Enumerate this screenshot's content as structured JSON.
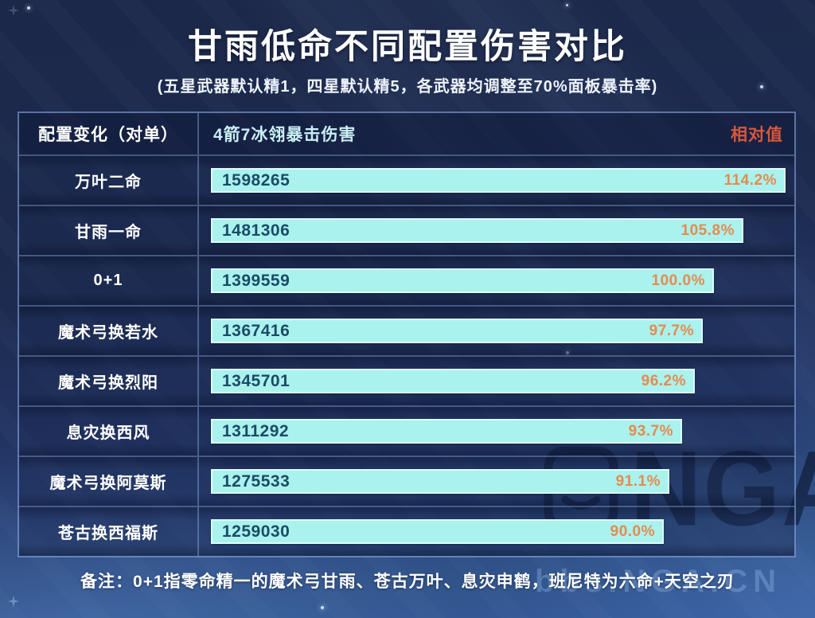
{
  "title": "甘雨低命不同配置伤害对比",
  "subtitle": "(五星武器默认精1，四星默认精5，各武器均调整至70%面板暴击率)",
  "table": {
    "header": {
      "config": "配置变化（对单）",
      "damage": "4箭7冰翎暴击伤害",
      "relative": "相对值"
    },
    "rows": [
      {
        "label": "万叶二命",
        "value": "1598265",
        "pct": "114.2%",
        "pct_num": 114.2
      },
      {
        "label": "甘雨一命",
        "value": "1481306",
        "pct": "105.8%",
        "pct_num": 105.8
      },
      {
        "label": "0+1",
        "value": "1399559",
        "pct": "100.0%",
        "pct_num": 100.0
      },
      {
        "label": "魔术弓换若水",
        "value": "1367416",
        "pct": "97.7%",
        "pct_num": 97.7
      },
      {
        "label": "魔术弓换烈阳",
        "value": "1345701",
        "pct": "96.2%",
        "pct_num": 96.2
      },
      {
        "label": "息灾换西风",
        "value": "1311292",
        "pct": "93.7%",
        "pct_num": 93.7
      },
      {
        "label": "魔术弓换阿莫斯",
        "value": "1275533",
        "pct": "91.1%",
        "pct_num": 91.1
      },
      {
        "label": "苍古换西福斯",
        "value": "1259030",
        "pct": "90.0%",
        "pct_num": 90.0
      }
    ]
  },
  "note": "备注：0+1指零命精一的魔术弓甘雨、苍古万叶、息灾申鹤，班尼特为六命+天空之刃",
  "watermark": {
    "logo_text": "NGA",
    "site_text": "bbs.NGA.CN"
  },
  "colors": {
    "bar_fill": "#aaf2ee",
    "bar_border": "#ddfdfb",
    "bar_value_text": "#1b4b66",
    "percent_text": "#e68a4f",
    "relative_header_text": "#d9573a",
    "damage_header_text": "#c9eef5",
    "background_top": "#1c2849",
    "background_bottom": "#35599a",
    "table_border": "#91b4f0"
  },
  "chart_data": {
    "type": "bar",
    "orientation": "horizontal",
    "title": "甘雨低命不同配置伤害对比",
    "subtitle": "(五星武器默认精1，四星默认精5，各武器均调整至70%面板暴击率)",
    "categories": [
      "万叶二命",
      "甘雨一命",
      "0+1",
      "魔术弓换若水",
      "魔术弓换烈阳",
      "息灾换西风",
      "魔术弓换阿莫斯",
      "苍古换西福斯"
    ],
    "series": [
      {
        "name": "4箭7冰翎暴击伤害",
        "values": [
          1598265,
          1481306,
          1399559,
          1367416,
          1345701,
          1311292,
          1275533,
          1259030
        ]
      },
      {
        "name": "相对值(%)",
        "values": [
          114.2,
          105.8,
          100.0,
          97.7,
          96.2,
          93.7,
          91.1,
          90.0
        ]
      }
    ],
    "value_labels_shown": true,
    "grid": false,
    "legend_position": "none",
    "note": "备注：0+1指零命精一的魔术弓甘雨、苍古万叶、息灾申鹤，班尼特为六命+天空之刃"
  }
}
